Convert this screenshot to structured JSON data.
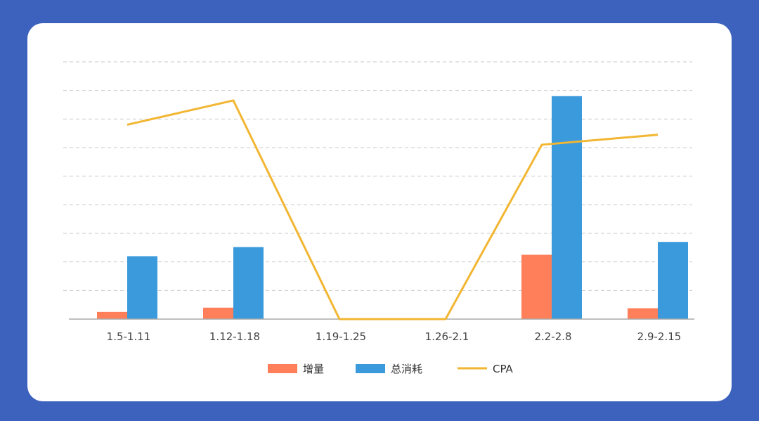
{
  "page": {
    "background": "#3d62bd",
    "card_background": "#ffffff"
  },
  "chart_data": {
    "type": "bar",
    "categories": [
      "1.5-1.11",
      "1.12-1.18",
      "1.19-1.25",
      "1.26-2.1",
      "2.2-2.8",
      "2.9-2.15"
    ],
    "ylim": [
      0,
      9
    ],
    "grid": true,
    "legend_position": "bottom-center",
    "series": [
      {
        "name": "增量",
        "type": "bar",
        "color": "#ff7f5a",
        "values": [
          0.25,
          0.4,
          0,
          0,
          2.25,
          0.38
        ]
      },
      {
        "name": "总消耗",
        "type": "bar",
        "color": "#3a9adb",
        "values": [
          2.2,
          2.52,
          0,
          0,
          7.8,
          2.7
        ]
      },
      {
        "name": "CPA",
        "type": "line",
        "color": "#f2b632",
        "values": [
          6.8,
          7.65,
          0,
          0,
          6.1,
          6.45
        ]
      }
    ]
  }
}
